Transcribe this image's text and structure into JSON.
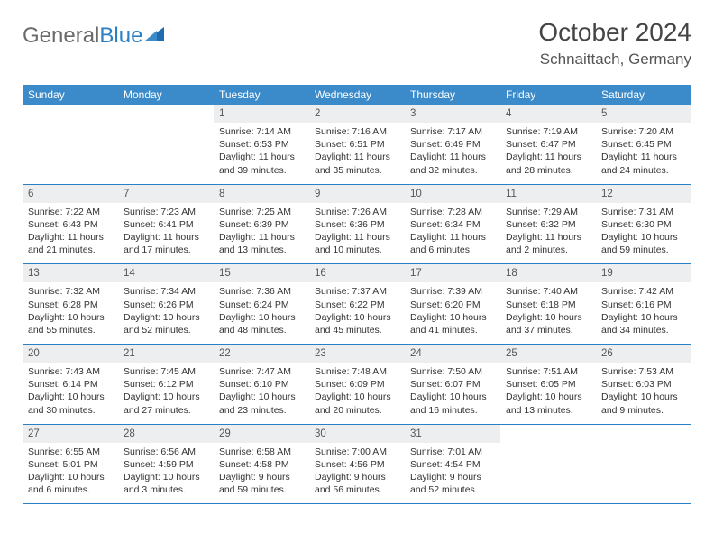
{
  "logo": {
    "word1": "General",
    "word2": "Blue"
  },
  "title": "October 2024",
  "location": "Schnaittach, Germany",
  "colors": {
    "header_bg": "#3b8aca",
    "header_text": "#ffffff",
    "daynum_bg": "#eceeef",
    "rule": "#2b7fc4",
    "logo_gray": "#6a6a6a",
    "logo_blue": "#2b7fc4"
  },
  "dow": [
    "Sunday",
    "Monday",
    "Tuesday",
    "Wednesday",
    "Thursday",
    "Friday",
    "Saturday"
  ],
  "weeks": [
    [
      null,
      null,
      {
        "n": "1",
        "sr": "Sunrise: 7:14 AM",
        "ss": "Sunset: 6:53 PM",
        "d1": "Daylight: 11 hours",
        "d2": "and 39 minutes."
      },
      {
        "n": "2",
        "sr": "Sunrise: 7:16 AM",
        "ss": "Sunset: 6:51 PM",
        "d1": "Daylight: 11 hours",
        "d2": "and 35 minutes."
      },
      {
        "n": "3",
        "sr": "Sunrise: 7:17 AM",
        "ss": "Sunset: 6:49 PM",
        "d1": "Daylight: 11 hours",
        "d2": "and 32 minutes."
      },
      {
        "n": "4",
        "sr": "Sunrise: 7:19 AM",
        "ss": "Sunset: 6:47 PM",
        "d1": "Daylight: 11 hours",
        "d2": "and 28 minutes."
      },
      {
        "n": "5",
        "sr": "Sunrise: 7:20 AM",
        "ss": "Sunset: 6:45 PM",
        "d1": "Daylight: 11 hours",
        "d2": "and 24 minutes."
      }
    ],
    [
      {
        "n": "6",
        "sr": "Sunrise: 7:22 AM",
        "ss": "Sunset: 6:43 PM",
        "d1": "Daylight: 11 hours",
        "d2": "and 21 minutes."
      },
      {
        "n": "7",
        "sr": "Sunrise: 7:23 AM",
        "ss": "Sunset: 6:41 PM",
        "d1": "Daylight: 11 hours",
        "d2": "and 17 minutes."
      },
      {
        "n": "8",
        "sr": "Sunrise: 7:25 AM",
        "ss": "Sunset: 6:39 PM",
        "d1": "Daylight: 11 hours",
        "d2": "and 13 minutes."
      },
      {
        "n": "9",
        "sr": "Sunrise: 7:26 AM",
        "ss": "Sunset: 6:36 PM",
        "d1": "Daylight: 11 hours",
        "d2": "and 10 minutes."
      },
      {
        "n": "10",
        "sr": "Sunrise: 7:28 AM",
        "ss": "Sunset: 6:34 PM",
        "d1": "Daylight: 11 hours",
        "d2": "and 6 minutes."
      },
      {
        "n": "11",
        "sr": "Sunrise: 7:29 AM",
        "ss": "Sunset: 6:32 PM",
        "d1": "Daylight: 11 hours",
        "d2": "and 2 minutes."
      },
      {
        "n": "12",
        "sr": "Sunrise: 7:31 AM",
        "ss": "Sunset: 6:30 PM",
        "d1": "Daylight: 10 hours",
        "d2": "and 59 minutes."
      }
    ],
    [
      {
        "n": "13",
        "sr": "Sunrise: 7:32 AM",
        "ss": "Sunset: 6:28 PM",
        "d1": "Daylight: 10 hours",
        "d2": "and 55 minutes."
      },
      {
        "n": "14",
        "sr": "Sunrise: 7:34 AM",
        "ss": "Sunset: 6:26 PM",
        "d1": "Daylight: 10 hours",
        "d2": "and 52 minutes."
      },
      {
        "n": "15",
        "sr": "Sunrise: 7:36 AM",
        "ss": "Sunset: 6:24 PM",
        "d1": "Daylight: 10 hours",
        "d2": "and 48 minutes."
      },
      {
        "n": "16",
        "sr": "Sunrise: 7:37 AM",
        "ss": "Sunset: 6:22 PM",
        "d1": "Daylight: 10 hours",
        "d2": "and 45 minutes."
      },
      {
        "n": "17",
        "sr": "Sunrise: 7:39 AM",
        "ss": "Sunset: 6:20 PM",
        "d1": "Daylight: 10 hours",
        "d2": "and 41 minutes."
      },
      {
        "n": "18",
        "sr": "Sunrise: 7:40 AM",
        "ss": "Sunset: 6:18 PM",
        "d1": "Daylight: 10 hours",
        "d2": "and 37 minutes."
      },
      {
        "n": "19",
        "sr": "Sunrise: 7:42 AM",
        "ss": "Sunset: 6:16 PM",
        "d1": "Daylight: 10 hours",
        "d2": "and 34 minutes."
      }
    ],
    [
      {
        "n": "20",
        "sr": "Sunrise: 7:43 AM",
        "ss": "Sunset: 6:14 PM",
        "d1": "Daylight: 10 hours",
        "d2": "and 30 minutes."
      },
      {
        "n": "21",
        "sr": "Sunrise: 7:45 AM",
        "ss": "Sunset: 6:12 PM",
        "d1": "Daylight: 10 hours",
        "d2": "and 27 minutes."
      },
      {
        "n": "22",
        "sr": "Sunrise: 7:47 AM",
        "ss": "Sunset: 6:10 PM",
        "d1": "Daylight: 10 hours",
        "d2": "and 23 minutes."
      },
      {
        "n": "23",
        "sr": "Sunrise: 7:48 AM",
        "ss": "Sunset: 6:09 PM",
        "d1": "Daylight: 10 hours",
        "d2": "and 20 minutes."
      },
      {
        "n": "24",
        "sr": "Sunrise: 7:50 AM",
        "ss": "Sunset: 6:07 PM",
        "d1": "Daylight: 10 hours",
        "d2": "and 16 minutes."
      },
      {
        "n": "25",
        "sr": "Sunrise: 7:51 AM",
        "ss": "Sunset: 6:05 PM",
        "d1": "Daylight: 10 hours",
        "d2": "and 13 minutes."
      },
      {
        "n": "26",
        "sr": "Sunrise: 7:53 AM",
        "ss": "Sunset: 6:03 PM",
        "d1": "Daylight: 10 hours",
        "d2": "and 9 minutes."
      }
    ],
    [
      {
        "n": "27",
        "sr": "Sunrise: 6:55 AM",
        "ss": "Sunset: 5:01 PM",
        "d1": "Daylight: 10 hours",
        "d2": "and 6 minutes."
      },
      {
        "n": "28",
        "sr": "Sunrise: 6:56 AM",
        "ss": "Sunset: 4:59 PM",
        "d1": "Daylight: 10 hours",
        "d2": "and 3 minutes."
      },
      {
        "n": "29",
        "sr": "Sunrise: 6:58 AM",
        "ss": "Sunset: 4:58 PM",
        "d1": "Daylight: 9 hours",
        "d2": "and 59 minutes."
      },
      {
        "n": "30",
        "sr": "Sunrise: 7:00 AM",
        "ss": "Sunset: 4:56 PM",
        "d1": "Daylight: 9 hours",
        "d2": "and 56 minutes."
      },
      {
        "n": "31",
        "sr": "Sunrise: 7:01 AM",
        "ss": "Sunset: 4:54 PM",
        "d1": "Daylight: 9 hours",
        "d2": "and 52 minutes."
      },
      null,
      null
    ]
  ]
}
